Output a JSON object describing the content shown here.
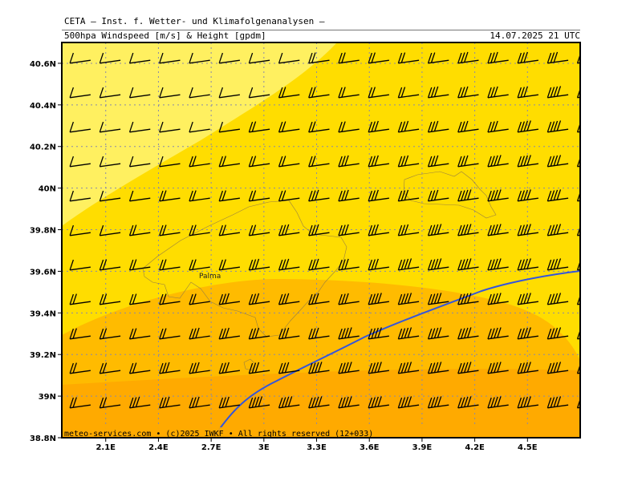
{
  "header": {
    "title": "CETA — Inst. f. Wetter- und Klimafolgenanalysen —",
    "parameter": "500hpa Windspeed [m/s] & Height [gpdm]",
    "valid_time": "14.07.2025 21 UTC"
  },
  "map": {
    "lon_range": [
      1.85,
      4.8
    ],
    "lat_range": [
      38.8,
      40.7
    ],
    "lon_ticks": [
      "2.1E",
      "2.4E",
      "2.7E",
      "3E",
      "3.3E",
      "3.6E",
      "3.9E",
      "4.2E",
      "4.5E"
    ],
    "lat_ticks": [
      "38.8N",
      "39N",
      "39.2N",
      "39.4N",
      "39.6N",
      "39.8N",
      "40N",
      "40.2N",
      "40.4N",
      "40.6N"
    ],
    "city_label": "Palma",
    "credit": "meteo-services.com • (c)2025 IWKF • All rights reserved (12+033)",
    "colors": {
      "light_yellow": "#FFF060",
      "yellow": "#FFDD00",
      "orange": "#FFBB00",
      "dark_orange": "#FFAA00",
      "contour": "#3355DD",
      "grid": "#8888AA",
      "coast": "#9a8040"
    }
  }
}
